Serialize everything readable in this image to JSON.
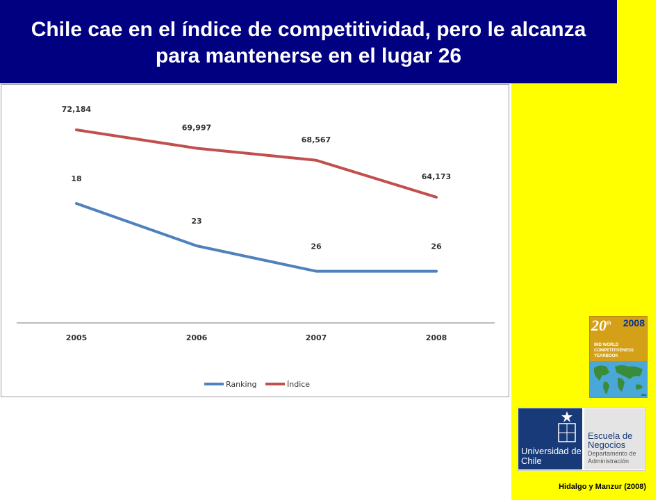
{
  "title": "Chile cae en el índice de competitividad, pero le alcanza para mantenerse en el lugar 26",
  "chart_data": {
    "type": "line",
    "categories": [
      "2005",
      "2006",
      "2007",
      "2008"
    ],
    "series": [
      {
        "name": "Ranking",
        "values": [
          18,
          23,
          26,
          26
        ],
        "labels": [
          "18",
          "23",
          "26",
          "26"
        ],
        "color": "#4f81bd"
      },
      {
        "name": "Índice",
        "values": [
          72.184,
          69.997,
          68.567,
          64.173
        ],
        "labels": [
          "72,184",
          "69,997",
          "68,567",
          "64,173"
        ],
        "color": "#c0504d"
      }
    ],
    "legend_position": "bottom",
    "grid": false
  },
  "sidebar": {
    "book": {
      "edition": "20",
      "edition_suffix": "th",
      "year": "2008",
      "text": "IMD WORLD COMPETITIVENESS YEARBOOK",
      "corner": "IMD"
    },
    "university": {
      "name": "Universidad de Chile",
      "school": "Escuela de Negocios",
      "department": "Departamento de Administración"
    },
    "citation": "Hidalgo y Manzur (2008)"
  },
  "colors": {
    "title_bg": "#000080",
    "panel_bg": "#ffff00",
    "ranking": "#4f81bd",
    "indice": "#c0504d"
  }
}
